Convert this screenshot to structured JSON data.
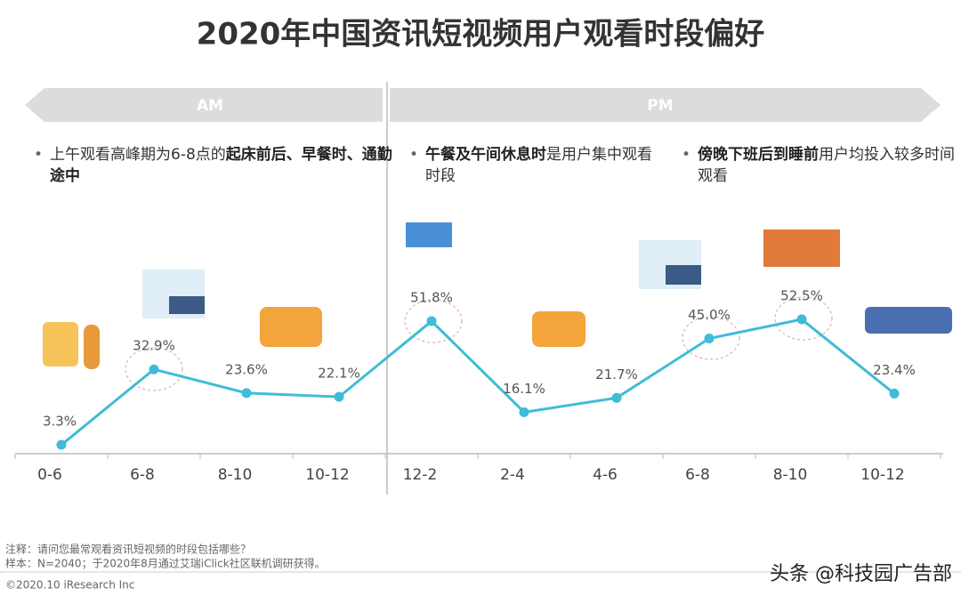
{
  "title": "2020年中国资讯短视频用户观看时段偏好",
  "banners": [
    "AM",
    "PM"
  ],
  "bullets": [
    {
      "segments": [
        {
          "text": "上午观看高峰期为6-8点的",
          "bold": false
        },
        {
          "text": "起床前后、早餐时、通勤途中",
          "bold": true
        }
      ]
    },
    {
      "segments": [
        {
          "text": "午餐及午间休息时",
          "bold": true
        },
        {
          "text": "是用户集中观看时段",
          "bold": false
        }
      ]
    },
    {
      "segments": [
        {
          "text": "傍晚下班后到睡前",
          "bold": true
        },
        {
          "text": "用户均投入较多时间观看",
          "bold": false
        }
      ]
    }
  ],
  "chart_data": {
    "type": "line",
    "color": "#3fbcd6",
    "categories": [
      "0-6",
      "6-8",
      "8-10",
      "10-12",
      "12-2",
      "2-4",
      "4-6",
      "6-8",
      "8-10",
      "10-12"
    ],
    "values": [
      3.3,
      32.9,
      23.6,
      22.1,
      51.8,
      16.1,
      21.7,
      45.0,
      52.5,
      23.4
    ],
    "value_labels": [
      "3.3%",
      "32.9%",
      "23.6%",
      "22.1%",
      "51.8%",
      "16.1%",
      "21.7%",
      "45.0%",
      "52.5%",
      "23.4%"
    ]
  },
  "footer": {
    "note": "注释：请问您最常观看资讯短视频的时段包括哪些？",
    "sample": "样本：N=2040；于2020年8月通过艾瑞iClick社区联机调研获得。",
    "copyright": "©2020.10 iResearch Inc",
    "watermark": "头条 @科技园广告部"
  }
}
